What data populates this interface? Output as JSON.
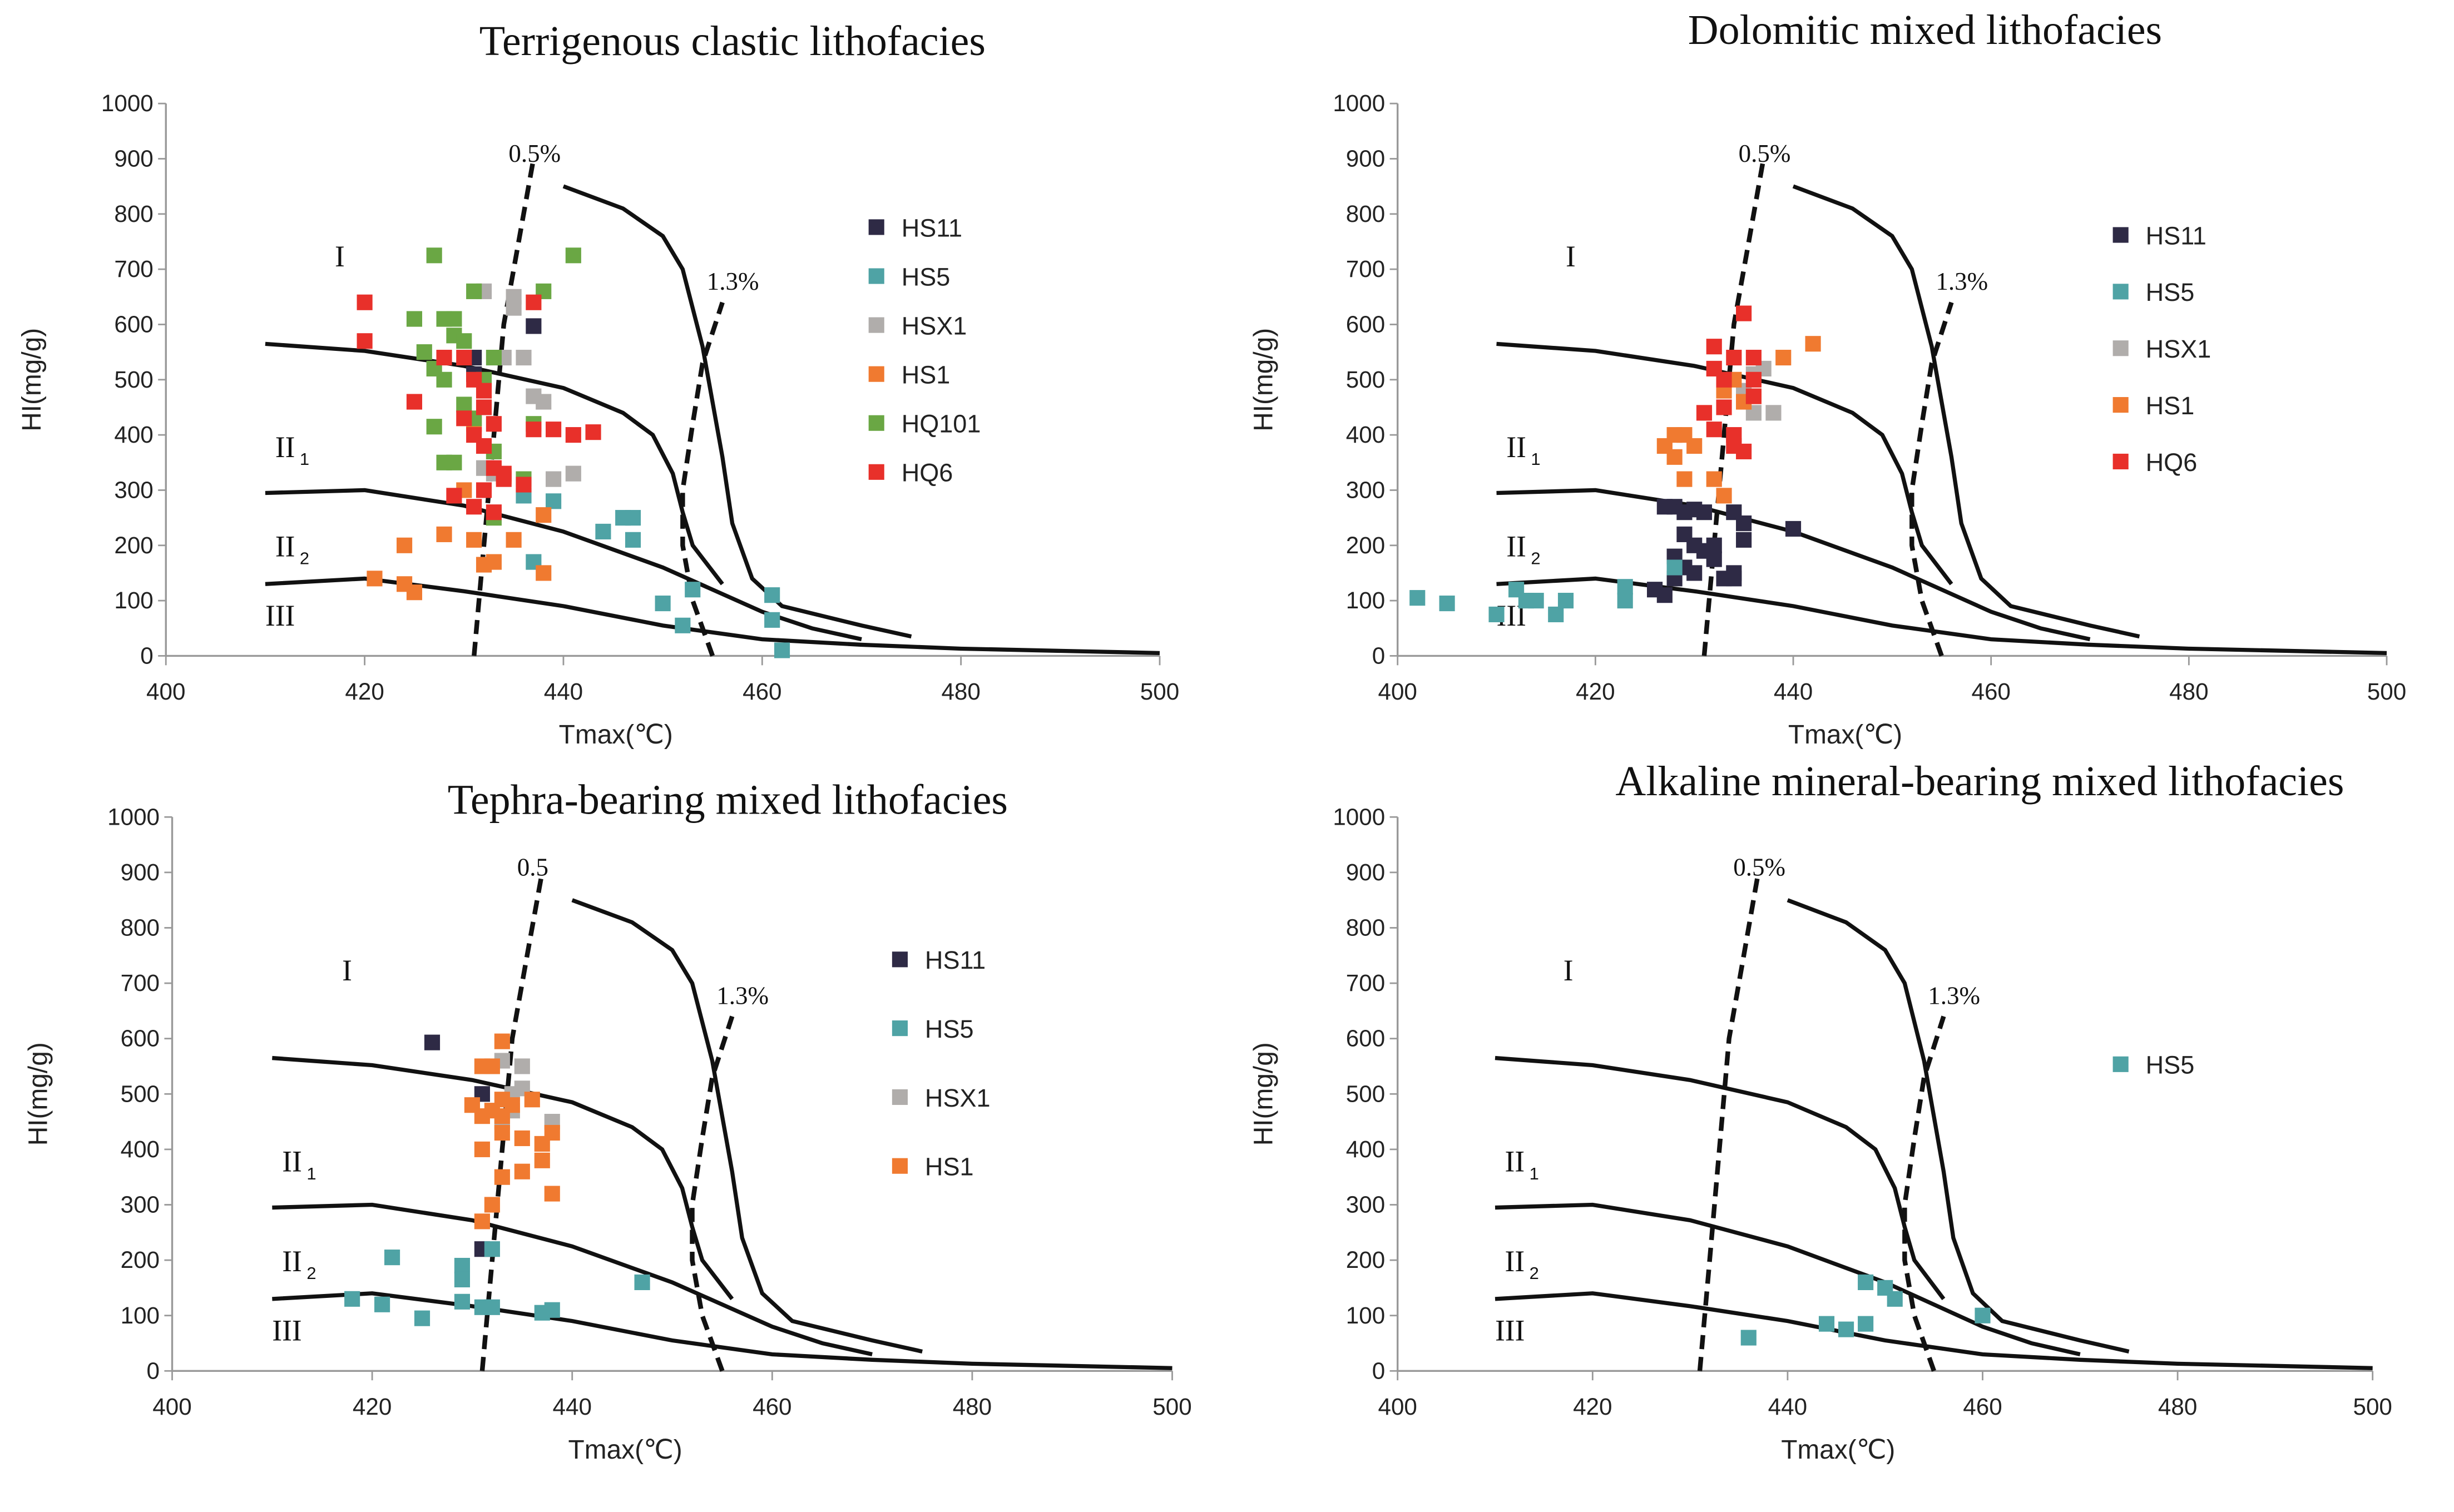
{
  "colors": {
    "HS11": "#2e2a45",
    "HS5": "#4fa3a5",
    "HSX1": "#b0adab",
    "HS1": "#f07a30",
    "HQ101": "#6aa744",
    "HQ6": "#e8302a"
  },
  "axes": {
    "xlabel": "Tmax(℃)",
    "ylabel": "HI(mg/g)",
    "xlim": [
      400,
      500
    ],
    "ylim": [
      0,
      1000
    ],
    "xticks": [
      400,
      420,
      440,
      460,
      480,
      500
    ],
    "yticks": [
      0,
      100,
      200,
      300,
      400,
      500,
      600,
      700,
      800,
      900,
      1000
    ]
  },
  "regions": [
    {
      "label": "I",
      "sub": "",
      "x": 417,
      "y": 705
    },
    {
      "label": "II",
      "sub": "1",
      "x": 411,
      "y": 360
    },
    {
      "label": "II",
      "sub": "2",
      "x": 411,
      "y": 180
    },
    {
      "label": "III",
      "sub": "",
      "x": 410,
      "y": 55
    }
  ],
  "curves": {
    "boundary_I_II1": [
      [
        410,
        565
      ],
      [
        420,
        552
      ],
      [
        430,
        525
      ],
      [
        440,
        485
      ],
      [
        446,
        440
      ],
      [
        449,
        400
      ],
      [
        451,
        330
      ],
      [
        452,
        260
      ],
      [
        453,
        200
      ],
      [
        456,
        130
      ]
    ],
    "boundary_II1_II2": [
      [
        410,
        295
      ],
      [
        420,
        300
      ],
      [
        430,
        272
      ],
      [
        440,
        225
      ],
      [
        450,
        160
      ],
      [
        460,
        80
      ],
      [
        465,
        50
      ],
      [
        470,
        30
      ]
    ],
    "boundary_II2_III": [
      [
        410,
        130
      ],
      [
        420,
        140
      ],
      [
        430,
        117
      ],
      [
        440,
        90
      ],
      [
        450,
        55
      ],
      [
        460,
        30
      ],
      [
        470,
        20
      ],
      [
        480,
        13
      ],
      [
        500,
        5
      ]
    ],
    "maturity_limit": [
      [
        440,
        850
      ],
      [
        446,
        810
      ],
      [
        450,
        760
      ],
      [
        452,
        700
      ],
      [
        454,
        560
      ],
      [
        456,
        360
      ],
      [
        457,
        240
      ],
      [
        459,
        140
      ],
      [
        462,
        90
      ],
      [
        470,
        55
      ],
      [
        475,
        35
      ]
    ],
    "ro_0_5": [
      [
        431,
        0
      ],
      [
        432,
        200
      ],
      [
        433,
        400
      ],
      [
        434,
        600
      ],
      [
        435.5,
        750
      ],
      [
        437,
        900
      ]
    ],
    "ro_1_3": [
      [
        455,
        0
      ],
      [
        453,
        100
      ],
      [
        452,
        200
      ],
      [
        452,
        300
      ],
      [
        453,
        420
      ],
      [
        454,
        530
      ],
      [
        456,
        640
      ]
    ]
  },
  "chart_data": [
    {
      "type": "scatter",
      "title": "Terrigenous clastic lithofacies",
      "xlabel": "Tmax(℃)",
      "ylabel": "HI(mg/g)",
      "xlim": [
        400,
        500
      ],
      "ylim": [
        0,
        1000
      ],
      "legend_position": "right",
      "ro_labels": {
        "low": "0.5%",
        "high": "1.3%"
      },
      "series": [
        {
          "name": "HS11",
          "points": [
            [
              437,
              597
            ],
            [
              431,
              540
            ],
            [
              431,
              510
            ]
          ]
        },
        {
          "name": "HS5",
          "points": [
            [
              436,
              290
            ],
            [
              437,
              170
            ],
            [
              439,
              280
            ],
            [
              444,
              225
            ],
            [
              446,
              250
            ],
            [
              447,
              250
            ],
            [
              447,
              210
            ],
            [
              450,
              95
            ],
            [
              452,
              55
            ],
            [
              453,
              120
            ],
            [
              461,
              110
            ],
            [
              461,
              65
            ],
            [
              462,
              10
            ]
          ]
        },
        {
          "name": "HSX1",
          "points": [
            [
              432,
              660
            ],
            [
              434,
              540
            ],
            [
              435,
              650
            ],
            [
              435,
              630
            ],
            [
              436,
              540
            ],
            [
              437,
              470
            ],
            [
              438,
              460
            ],
            [
              439,
              320
            ],
            [
              441,
              330
            ],
            [
              433,
              330
            ],
            [
              432,
              340
            ]
          ]
        },
        {
          "name": "HS1",
          "points": [
            [
              421,
              140
            ],
            [
              424,
              130
            ],
            [
              425,
              115
            ],
            [
              424,
              200
            ],
            [
              428,
              220
            ],
            [
              431,
              210
            ],
            [
              432,
              165
            ],
            [
              433,
              170
            ],
            [
              435,
              210
            ],
            [
              434,
              325
            ],
            [
              438,
              150
            ],
            [
              438,
              255
            ],
            [
              431,
              420
            ],
            [
              430,
              300
            ]
          ]
        },
        {
          "name": "HQ101",
          "points": [
            [
              427,
              725
            ],
            [
              441,
              725
            ],
            [
              425,
              610
            ],
            [
              428,
              610
            ],
            [
              429,
              610
            ],
            [
              431,
              660
            ],
            [
              433,
              540
            ],
            [
              426,
              550
            ],
            [
              427,
              520
            ],
            [
              428,
              500
            ],
            [
              429,
              580
            ],
            [
              430,
              570
            ],
            [
              430,
              455
            ],
            [
              428,
              350
            ],
            [
              427,
              415
            ],
            [
              431,
              430
            ],
            [
              432,
              500
            ],
            [
              433,
              370
            ],
            [
              437,
              420
            ],
            [
              436,
              320
            ],
            [
              438,
              660
            ],
            [
              433,
              250
            ],
            [
              429,
              350
            ]
          ]
        },
        {
          "name": "HQ6",
          "points": [
            [
              420,
              640
            ],
            [
              420,
              570
            ],
            [
              425,
              460
            ],
            [
              428,
              540
            ],
            [
              430,
              540
            ],
            [
              431,
              500
            ],
            [
              432,
              480
            ],
            [
              430,
              430
            ],
            [
              432,
              450
            ],
            [
              431,
              400
            ],
            [
              433,
              420
            ],
            [
              432,
              380
            ],
            [
              433,
              340
            ],
            [
              434,
              330
            ],
            [
              437,
              410
            ],
            [
              439,
              410
            ],
            [
              441,
              400
            ],
            [
              443,
              405
            ],
            [
              429,
              290
            ],
            [
              431,
              270
            ],
            [
              432,
              300
            ],
            [
              433,
              260
            ],
            [
              437,
              640
            ],
            [
              434,
              320
            ],
            [
              436,
              310
            ]
          ]
        }
      ]
    },
    {
      "type": "scatter",
      "title": "Dolomitic mixed lithofacies",
      "xlabel": "Tmax(℃)",
      "ylabel": "HI(mg/g)",
      "xlim": [
        400,
        500
      ],
      "ylim": [
        0,
        1000
      ],
      "legend_position": "right",
      "ro_labels": {
        "low": "0.5%",
        "high": "1.3%"
      },
      "series": [
        {
          "name": "HS11",
          "points": [
            [
              427,
              270
            ],
            [
              428,
              270
            ],
            [
              429,
              260
            ],
            [
              430,
              265
            ],
            [
              431,
              260
            ],
            [
              429,
              220
            ],
            [
              430,
              200
            ],
            [
              431,
              190
            ],
            [
              429,
              160
            ],
            [
              430,
              150
            ],
            [
              432,
              200
            ],
            [
              432,
              175
            ],
            [
              433,
              140
            ],
            [
              434,
              150
            ],
            [
              435,
              240
            ],
            [
              434,
              260
            ],
            [
              435,
              210
            ],
            [
              428,
              140
            ],
            [
              427,
              110
            ],
            [
              426,
              120
            ],
            [
              440,
              230
            ],
            [
              434,
              140
            ],
            [
              428,
              180
            ]
          ]
        },
        {
          "name": "HS5",
          "points": [
            [
              402,
              105
            ],
            [
              405,
              95
            ],
            [
              410,
              75
            ],
            [
              412,
              120
            ],
            [
              413,
              100
            ],
            [
              414,
              100
            ],
            [
              416,
              75
            ],
            [
              417,
              100
            ],
            [
              423,
              125
            ],
            [
              423,
              100
            ],
            [
              428,
              160
            ]
          ]
        },
        {
          "name": "HSX1",
          "points": [
            [
              436,
              510
            ],
            [
              437,
              520
            ],
            [
              436,
              440
            ],
            [
              438,
              440
            ],
            [
              435,
              480
            ]
          ]
        },
        {
          "name": "HS1",
          "points": [
            [
              427,
              380
            ],
            [
              428,
              360
            ],
            [
              428,
              400
            ],
            [
              429,
              400
            ],
            [
              430,
              380
            ],
            [
              429,
              320
            ],
            [
              432,
              320
            ],
            [
              433,
              290
            ],
            [
              442,
              565
            ],
            [
              439,
              540
            ],
            [
              433,
              480
            ],
            [
              434,
              500
            ],
            [
              436,
              470
            ],
            [
              435,
              460
            ]
          ]
        },
        {
          "name": "HQ6",
          "points": [
            [
              432,
              560
            ],
            [
              432,
              520
            ],
            [
              433,
              500
            ],
            [
              434,
              540
            ],
            [
              436,
              540
            ],
            [
              435,
              620
            ],
            [
              436,
              500
            ],
            [
              436,
              470
            ],
            [
              433,
              450
            ],
            [
              431,
              440
            ],
            [
              432,
              410
            ],
            [
              434,
              380
            ],
            [
              434,
              400
            ],
            [
              435,
              370
            ]
          ]
        }
      ]
    },
    {
      "type": "scatter",
      "title": "Tephra-bearing mixed lithofacies",
      "xlabel": "Tmax(℃)",
      "ylabel": "HI(mg/g)",
      "xlim": [
        400,
        500
      ],
      "ylim": [
        0,
        1000
      ],
      "legend_position": "right",
      "ro_labels": {
        "low": "0.5",
        "high": "1.3%"
      },
      "series": [
        {
          "name": "HS11",
          "points": [
            [
              426,
              593
            ],
            [
              431,
              500
            ],
            [
              431,
              220
            ]
          ]
        },
        {
          "name": "HS5",
          "points": [
            [
              418,
              130
            ],
            [
              421,
              120
            ],
            [
              422,
              205
            ],
            [
              425,
              95
            ],
            [
              429,
              190
            ],
            [
              429,
              165
            ],
            [
              429,
              125
            ],
            [
              431,
              115
            ],
            [
              432,
              115
            ],
            [
              432,
              220
            ],
            [
              437,
              105
            ],
            [
              438,
              110
            ],
            [
              447,
              160
            ]
          ]
        },
        {
          "name": "HSX1",
          "points": [
            [
              433,
              560
            ],
            [
              434,
              500
            ],
            [
              435,
              550
            ],
            [
              435,
              510
            ],
            [
              434,
              470
            ],
            [
              438,
              450
            ],
            [
              433,
              450
            ]
          ]
        },
        {
          "name": "HS1",
          "points": [
            [
              433,
              595
            ],
            [
              431,
              550
            ],
            [
              432,
              550
            ],
            [
              430,
              480
            ],
            [
              431,
              460
            ],
            [
              432,
              470
            ],
            [
              433,
              490
            ],
            [
              434,
              480
            ],
            [
              431,
              400
            ],
            [
              433,
              430
            ],
            [
              436,
              490
            ],
            [
              435,
              420
            ],
            [
              435,
              360
            ],
            [
              437,
              380
            ],
            [
              437,
              410
            ],
            [
              438,
              430
            ],
            [
              438,
              320
            ],
            [
              433,
              350
            ],
            [
              432,
              300
            ],
            [
              431,
              270
            ],
            [
              433,
              460
            ]
          ]
        }
      ]
    },
    {
      "type": "scatter",
      "title": "Alkaline mineral-bearing mixed lithofacies",
      "xlabel": "Tmax(℃)",
      "ylabel": "HI(mg/g)",
      "xlim": [
        400,
        500
      ],
      "ylim": [
        0,
        1000
      ],
      "legend_position": "right",
      "ro_labels": {
        "low": "0.5%",
        "high": "1.3%"
      },
      "series": [
        {
          "name": "HS5",
          "points": [
            [
              436,
              60
            ],
            [
              444,
              85
            ],
            [
              446,
              75
            ],
            [
              448,
              85
            ],
            [
              448,
              160
            ],
            [
              450,
              150
            ],
            [
              451,
              130
            ],
            [
              460,
              100
            ]
          ]
        }
      ]
    }
  ]
}
